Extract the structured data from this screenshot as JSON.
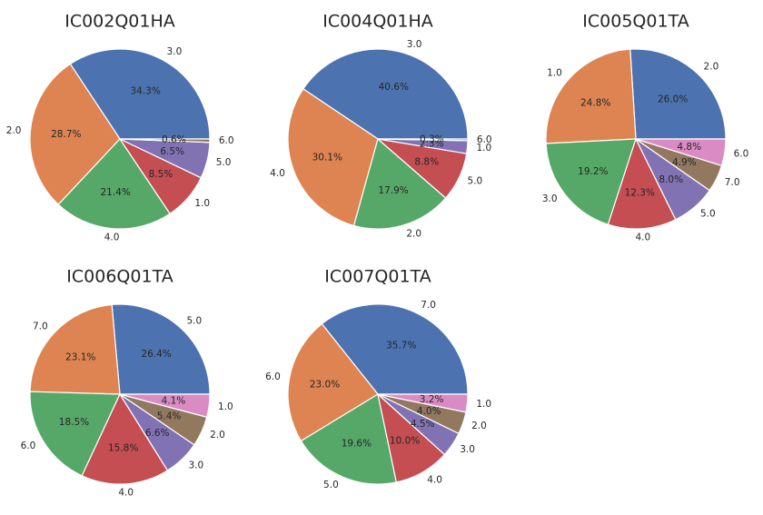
{
  "colors": [
    "#4c72b0",
    "#dd8452",
    "#55a868",
    "#c44e52",
    "#8172b3",
    "#937860",
    "#da8bc3"
  ],
  "chart_data": [
    {
      "type": "pie",
      "title": "IC002Q01HA",
      "labels": [
        "3.0",
        "2.0",
        "4.0",
        "1.0",
        "5.0",
        "6.0"
      ],
      "values": [
        34.3,
        28.7,
        21.4,
        8.5,
        6.5,
        0.6
      ],
      "percent_labels": [
        "34.3%",
        "28.7%",
        "21.4%",
        "8.5%",
        "6.5%",
        "0.6%"
      ]
    },
    {
      "type": "pie",
      "title": "IC004Q01HA",
      "labels": [
        "3.0",
        "4.0",
        "2.0",
        "5.0",
        "1.0",
        "6.0"
      ],
      "values": [
        40.6,
        30.1,
        17.9,
        8.8,
        2.3,
        0.3
      ],
      "percent_labels": [
        "40.6%",
        "30.1%",
        "17.9%",
        "8.8%",
        "2.3%",
        "0.3%"
      ]
    },
    {
      "type": "pie",
      "title": "IC005Q01TA",
      "labels": [
        "2.0",
        "1.0",
        "3.0",
        "4.0",
        "5.0",
        "7.0",
        "6.0"
      ],
      "values": [
        26.0,
        24.8,
        19.2,
        12.3,
        8.0,
        4.9,
        4.8
      ],
      "percent_labels": [
        "26.0%",
        "24.8%",
        "19.2%",
        "12.3%",
        "8.0%",
        "4.9%",
        "4.8%"
      ]
    },
    {
      "type": "pie",
      "title": "IC006Q01TA",
      "labels": [
        "5.0",
        "7.0",
        "6.0",
        "4.0",
        "3.0",
        "2.0",
        "1.0"
      ],
      "values": [
        26.4,
        23.1,
        18.5,
        15.8,
        6.6,
        5.4,
        4.1
      ],
      "percent_labels": [
        "26.4%",
        "23.1%",
        "18.5%",
        "15.8%",
        "6.6%",
        "5.4%",
        "4.1%"
      ]
    },
    {
      "type": "pie",
      "title": "IC007Q01TA",
      "labels": [
        "7.0",
        "6.0",
        "5.0",
        "4.0",
        "3.0",
        "2.0",
        "1.0"
      ],
      "values": [
        35.7,
        23.0,
        19.6,
        10.0,
        4.5,
        4.0,
        3.2
      ],
      "percent_labels": [
        "35.7%",
        "23.0%",
        "19.6%",
        "10.0%",
        "4.5%",
        "4.0%",
        "3.2%"
      ]
    }
  ]
}
